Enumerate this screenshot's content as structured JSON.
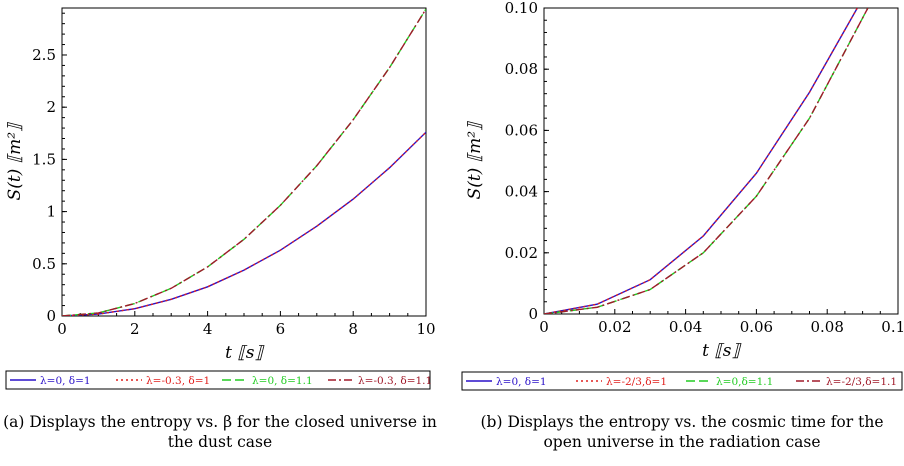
{
  "chart_data": [
    {
      "type": "line",
      "ylabel": "S(t) ⟦m²⟧",
      "xlabel": "t ⟦s⟧",
      "xlim": [
        0,
        10
      ],
      "ylim": [
        0,
        2.95
      ],
      "xticks": [
        "0",
        "2",
        "4",
        "6",
        "8",
        "10"
      ],
      "yticks": [
        "0",
        "0.5",
        "1",
        "1.5",
        "2",
        "2.5"
      ],
      "grid": false,
      "legend_position": "bottom",
      "series": [
        {
          "name": "λ=0, δ=1",
          "color": "#2a11c8",
          "style": "solid",
          "x": [
            0,
            1,
            2,
            3,
            4,
            5,
            6,
            7,
            8,
            9,
            10
          ],
          "y": [
            0,
            0.018,
            0.07,
            0.16,
            0.28,
            0.44,
            0.63,
            0.86,
            1.12,
            1.42,
            1.76
          ]
        },
        {
          "name": "λ=-0.3, δ=1",
          "color": "#e0201e",
          "style": "dotted",
          "x": [
            0,
            1,
            2,
            3,
            4,
            5,
            6,
            7,
            8,
            9,
            10
          ],
          "y": [
            0,
            0.018,
            0.07,
            0.16,
            0.28,
            0.44,
            0.63,
            0.86,
            1.12,
            1.42,
            1.76
          ]
        },
        {
          "name": "λ=0, δ=1.1",
          "color": "#22cc22",
          "style": "dashed",
          "x": [
            0,
            1,
            2,
            3,
            4,
            5,
            6,
            7,
            8,
            9,
            10
          ],
          "y": [
            0,
            0.03,
            0.12,
            0.265,
            0.47,
            0.735,
            1.06,
            1.44,
            1.88,
            2.38,
            2.94
          ]
        },
        {
          "name": "λ=-0.3, δ=1.1",
          "color": "#a01a2a",
          "style": "dashdot",
          "x": [
            0,
            1,
            2,
            3,
            4,
            5,
            6,
            7,
            8,
            9,
            10
          ],
          "y": [
            0,
            0.03,
            0.12,
            0.265,
            0.47,
            0.735,
            1.06,
            1.44,
            1.88,
            2.38,
            2.94
          ]
        }
      ]
    },
    {
      "type": "line",
      "ylabel": "S(t) ⟦m²⟧",
      "xlabel": "t ⟦s⟧",
      "xlim": [
        0,
        0.1
      ],
      "ylim": [
        0,
        0.1
      ],
      "xticks": [
        "0",
        "0.02",
        "0.04",
        "0.06",
        "0.08",
        "0.10"
      ],
      "yticks": [
        "0",
        "0.02",
        "0.04",
        "0.06",
        "0.08",
        "0.10"
      ],
      "grid": false,
      "legend_position": "bottom",
      "series": [
        {
          "name": "λ=0, δ=1",
          "color": "#2a11c8",
          "style": "solid",
          "x": [
            0,
            0.015,
            0.03,
            0.045,
            0.06,
            0.075,
            0.0885
          ],
          "y": [
            0,
            0.0032,
            0.0112,
            0.0255,
            0.046,
            0.0725,
            0.1
          ]
        },
        {
          "name": "λ=-2/3,δ=1",
          "color": "#e0201e",
          "style": "dotted",
          "x": [
            0,
            0.015,
            0.03,
            0.045,
            0.06,
            0.075,
            0.0885
          ],
          "y": [
            0,
            0.0032,
            0.0112,
            0.0255,
            0.046,
            0.0725,
            0.1
          ]
        },
        {
          "name": "λ=0,δ=1.1",
          "color": "#22cc22",
          "style": "dashed",
          "x": [
            0,
            0.015,
            0.03,
            0.045,
            0.06,
            0.075,
            0.0915
          ],
          "y": [
            0,
            0.0022,
            0.008,
            0.02,
            0.0385,
            0.064,
            0.1
          ]
        },
        {
          "name": "λ=-2/3,δ=1.1",
          "color": "#a01a2a",
          "style": "dashdot",
          "x": [
            0,
            0.015,
            0.03,
            0.045,
            0.06,
            0.075,
            0.0915
          ],
          "y": [
            0,
            0.0022,
            0.008,
            0.02,
            0.0385,
            0.064,
            0.1
          ]
        }
      ]
    }
  ],
  "captions": {
    "a": {
      "prefix": "(a)",
      "text": "Displays the entropy vs. β for the closed universe in the dust case"
    },
    "b": {
      "prefix": "(b)",
      "text": "Displays the entropy vs. the cosmic time for the open universe in the radiation case"
    }
  }
}
